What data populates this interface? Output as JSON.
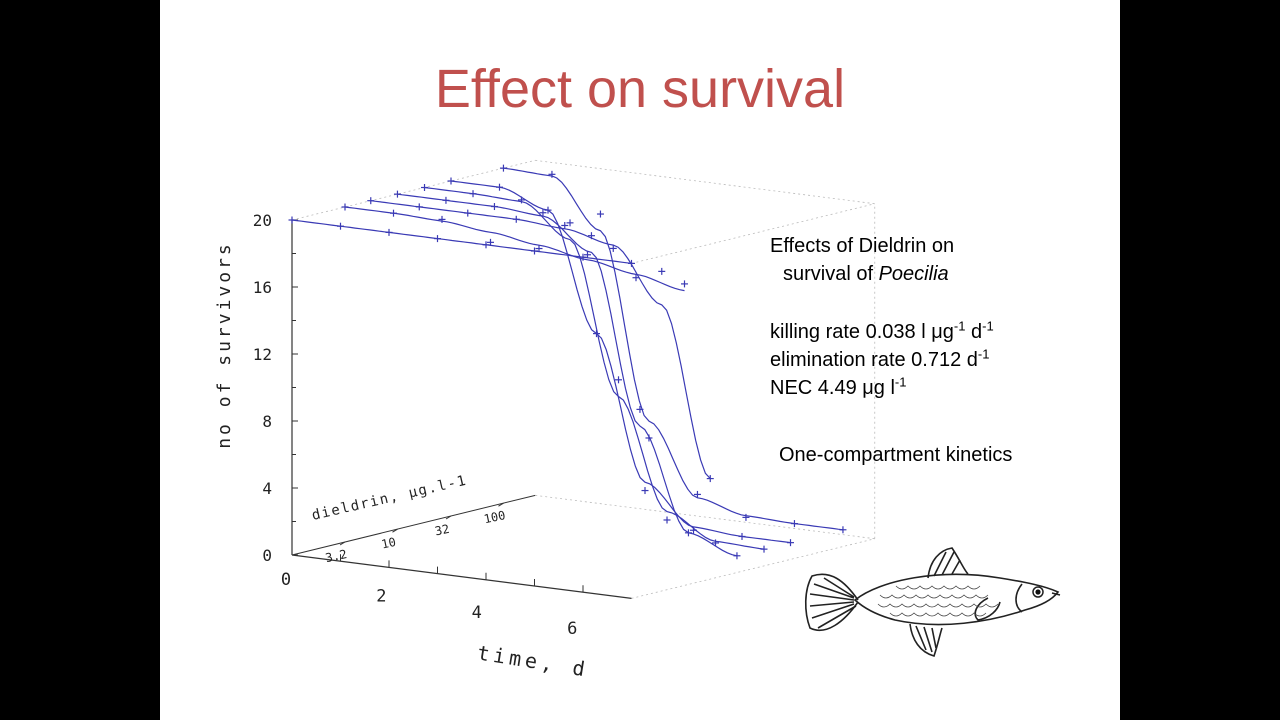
{
  "slide": {
    "title": "Effect on survival",
    "side_text": {
      "line1": "Effects of Dieldrin on",
      "line2_prefix": "survival of ",
      "line2_species": "Poecilia",
      "killing_rate": {
        "label": "killing rate 0.038 l ",
        "unit_mu": "μ",
        "unit_g": "g",
        "exp1": "-1",
        "unit_d": " d",
        "exp2": "-1"
      },
      "elimination_rate": {
        "label": "elimination rate 0.712 d",
        "exp": "-1"
      },
      "nec": {
        "label": "NEC 4.49 ",
        "unit_mu": "μ",
        "unit_g": "g l",
        "exp": "-1"
      },
      "kinetics": "One-compartment kinetics"
    }
  },
  "chart_data": {
    "type": "line",
    "projection": "3d",
    "ylabel": "no of survivors",
    "xlabel": "time, d",
    "zlabel": "dieldrin, µg.l-1",
    "y_ticks": [
      "0",
      "4",
      "8",
      "12",
      "16",
      "20"
    ],
    "x_ticks": [
      "0",
      "2",
      "4",
      "6"
    ],
    "z_ticks": [
      "3.2",
      "10",
      "32",
      "100"
    ],
    "ylim": [
      0,
      20
    ],
    "xlim": [
      0,
      7
    ],
    "line_color": "#3a3ab5",
    "series": [
      {
        "concentration": 0,
        "x": [
          0,
          1,
          2,
          3,
          4,
          5,
          6,
          7
        ],
        "y": [
          20,
          20,
          20,
          20,
          20,
          20,
          20,
          20
        ],
        "fit": [
          20,
          20,
          20,
          20,
          20,
          20,
          20,
          20
        ]
      },
      {
        "concentration": 3.2,
        "x": [
          0,
          1,
          2,
          3,
          4,
          5,
          6,
          7
        ],
        "y": [
          20,
          20,
          20,
          19,
          19,
          19,
          18,
          18
        ],
        "fit": [
          20,
          20,
          19.9,
          19.6,
          19.2,
          18.7,
          18.2,
          17.6
        ]
      },
      {
        "concentration": 5.6,
        "x": [
          0,
          1,
          2,
          3,
          4,
          5,
          6,
          7
        ],
        "y": [
          20,
          20,
          20,
          20,
          20,
          19,
          18,
          6
        ],
        "fit": [
          20,
          20,
          20,
          20,
          19.8,
          19.2,
          16,
          6
        ]
      },
      {
        "concentration": 10,
        "x": [
          0,
          1,
          2,
          3,
          4,
          5,
          6,
          7
        ],
        "y": [
          20,
          20,
          20,
          20,
          19,
          9,
          2,
          1
        ],
        "fit": [
          20,
          20,
          20,
          19.8,
          18,
          8,
          2,
          1
        ]
      },
      {
        "concentration": 18,
        "x": [
          0,
          1,
          2,
          3,
          4,
          5,
          6,
          7
        ],
        "y": [
          20,
          20,
          20,
          19,
          10,
          2,
          1,
          1
        ],
        "fit": [
          20,
          20,
          19.9,
          18,
          9,
          2.5,
          1.1,
          1
        ]
      },
      {
        "concentration": 32,
        "x": [
          0,
          1,
          2,
          3,
          4,
          5,
          6,
          7
        ],
        "y": [
          20,
          20,
          19,
          12,
          3,
          1,
          1,
          1
        ],
        "fit": [
          20,
          20,
          19,
          12,
          3.5,
          1.2,
          1,
          1
        ]
      },
      {
        "concentration": 100,
        "x": [
          0,
          1,
          2,
          3,
          4,
          5,
          6,
          7
        ],
        "y": [
          20,
          20,
          18,
          5,
          2,
          1,
          1,
          1
        ],
        "fit": [
          20,
          19.9,
          17,
          6,
          1.8,
          1.1,
          1,
          1
        ]
      }
    ]
  }
}
